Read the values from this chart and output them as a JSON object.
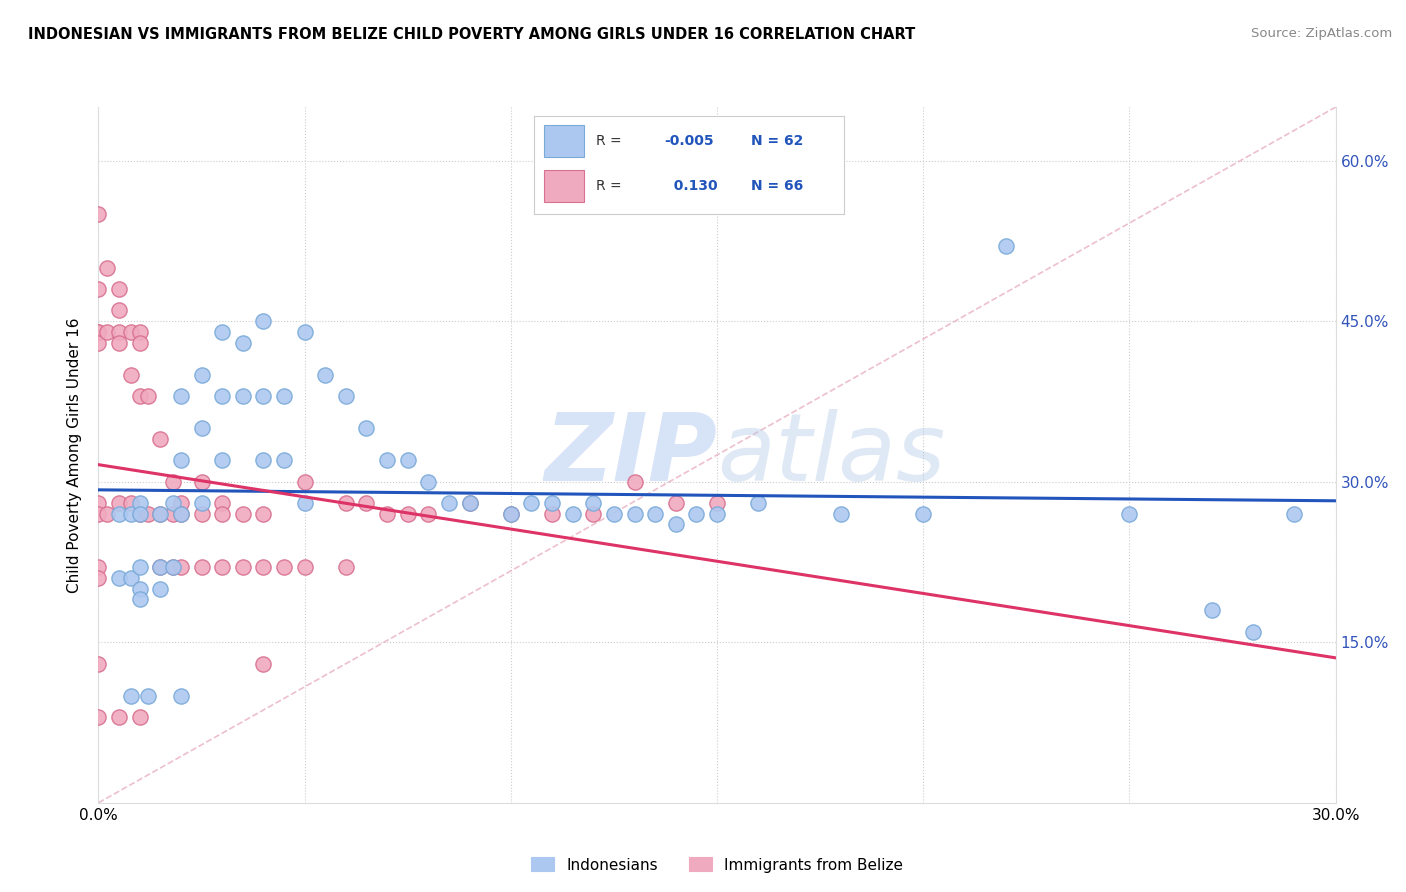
{
  "title": "INDONESIAN VS IMMIGRANTS FROM BELIZE CHILD POVERTY AMONG GIRLS UNDER 16 CORRELATION CHART",
  "source": "Source: ZipAtlas.com",
  "ylabel": "Child Poverty Among Girls Under 16",
  "xlim": [
    0.0,
    0.3
  ],
  "ylim": [
    0.0,
    0.65
  ],
  "ytick_positions": [
    0.15,
    0.3,
    0.45,
    0.6
  ],
  "ytick_labels": [
    "15.0%",
    "30.0%",
    "45.0%",
    "60.0%"
  ],
  "R_indonesian": -0.005,
  "N_indonesian": 62,
  "R_belize": 0.13,
  "N_belize": 66,
  "dot_size": 120,
  "indonesian_color": "#adc8f0",
  "indonesian_edge": "#7aaad8",
  "belize_color": "#f0aac0",
  "belize_edge": "#d87090",
  "trendline_indonesian_color": "#2255bb",
  "trendline_belize_color": "#dd3366",
  "watermark_color": "#c8d8f0",
  "indonesian_x": [
    0.005,
    0.005,
    0.008,
    0.008,
    0.01,
    0.01,
    0.01,
    0.01,
    0.01,
    0.015,
    0.015,
    0.015,
    0.018,
    0.018,
    0.02,
    0.02,
    0.02,
    0.025,
    0.025,
    0.025,
    0.03,
    0.03,
    0.03,
    0.035,
    0.035,
    0.04,
    0.04,
    0.04,
    0.045,
    0.045,
    0.05,
    0.05,
    0.055,
    0.06,
    0.065,
    0.07,
    0.075,
    0.08,
    0.085,
    0.09,
    0.1,
    0.105,
    0.11,
    0.115,
    0.12,
    0.125,
    0.13,
    0.135,
    0.14,
    0.145,
    0.15,
    0.16,
    0.18,
    0.2,
    0.22,
    0.25,
    0.27,
    0.28,
    0.29,
    0.008,
    0.012,
    0.02
  ],
  "indonesian_y": [
    0.27,
    0.21,
    0.27,
    0.21,
    0.28,
    0.27,
    0.22,
    0.2,
    0.19,
    0.27,
    0.22,
    0.2,
    0.28,
    0.22,
    0.38,
    0.32,
    0.27,
    0.4,
    0.35,
    0.28,
    0.44,
    0.38,
    0.32,
    0.43,
    0.38,
    0.45,
    0.38,
    0.32,
    0.38,
    0.32,
    0.44,
    0.28,
    0.4,
    0.38,
    0.35,
    0.32,
    0.32,
    0.3,
    0.28,
    0.28,
    0.27,
    0.28,
    0.28,
    0.27,
    0.28,
    0.27,
    0.27,
    0.27,
    0.26,
    0.27,
    0.27,
    0.28,
    0.27,
    0.27,
    0.52,
    0.27,
    0.18,
    0.16,
    0.27,
    0.1,
    0.1,
    0.1
  ],
  "belize_x": [
    0.0,
    0.0,
    0.0,
    0.0,
    0.0,
    0.0,
    0.0,
    0.0,
    0.0,
    0.0,
    0.002,
    0.002,
    0.002,
    0.005,
    0.005,
    0.005,
    0.005,
    0.005,
    0.008,
    0.008,
    0.008,
    0.01,
    0.01,
    0.01,
    0.01,
    0.012,
    0.012,
    0.015,
    0.015,
    0.015,
    0.018,
    0.018,
    0.018,
    0.02,
    0.02,
    0.02,
    0.025,
    0.025,
    0.025,
    0.03,
    0.03,
    0.03,
    0.035,
    0.035,
    0.04,
    0.04,
    0.04,
    0.045,
    0.05,
    0.05,
    0.06,
    0.06,
    0.065,
    0.07,
    0.075,
    0.08,
    0.09,
    0.1,
    0.11,
    0.12,
    0.13,
    0.14,
    0.15,
    0.0,
    0.005,
    0.01
  ],
  "belize_y": [
    0.55,
    0.48,
    0.44,
    0.44,
    0.43,
    0.28,
    0.27,
    0.22,
    0.21,
    0.13,
    0.5,
    0.44,
    0.27,
    0.48,
    0.46,
    0.44,
    0.43,
    0.28,
    0.44,
    0.4,
    0.28,
    0.44,
    0.43,
    0.38,
    0.27,
    0.38,
    0.27,
    0.34,
    0.27,
    0.22,
    0.3,
    0.27,
    0.22,
    0.28,
    0.27,
    0.22,
    0.3,
    0.27,
    0.22,
    0.28,
    0.27,
    0.22,
    0.27,
    0.22,
    0.27,
    0.22,
    0.13,
    0.22,
    0.3,
    0.22,
    0.28,
    0.22,
    0.28,
    0.27,
    0.27,
    0.27,
    0.28,
    0.27,
    0.27,
    0.27,
    0.3,
    0.28,
    0.28,
    0.08,
    0.08,
    0.08
  ]
}
